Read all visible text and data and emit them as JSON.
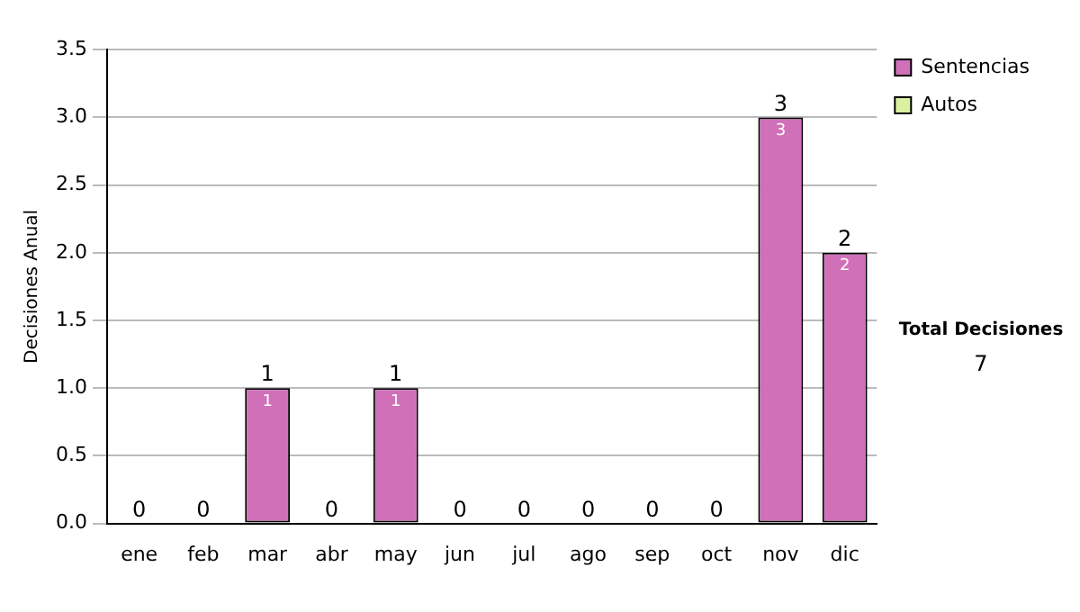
{
  "chart_data": {
    "type": "bar",
    "stacked": true,
    "ylabel": "Decisiones Anual",
    "categories": [
      "ene",
      "feb",
      "mar",
      "abr",
      "may",
      "jun",
      "jul",
      "ago",
      "sep",
      "oct",
      "nov",
      "dic"
    ],
    "series": [
      {
        "name": "Sentencias",
        "color": "#d070b8",
        "values": [
          0,
          0,
          1,
          0,
          1,
          0,
          0,
          0,
          0,
          0,
          3,
          2
        ],
        "value_labels": [
          null,
          null,
          "1",
          null,
          "1",
          null,
          null,
          null,
          null,
          null,
          "3",
          "2"
        ]
      },
      {
        "name": "Autos",
        "color": "#d8f0a0",
        "values": [
          0,
          0,
          0,
          0,
          0,
          0,
          0,
          0,
          0,
          0,
          0,
          0
        ]
      }
    ],
    "totals": [
      "0",
      "0",
      "1",
      "0",
      "1",
      "0",
      "0",
      "0",
      "0",
      "0",
      "3",
      "2"
    ],
    "ylim": [
      0,
      3.5
    ],
    "yticks": [
      {
        "value": 0,
        "label": "0.0"
      },
      {
        "value": 0.5,
        "label": "0.5"
      },
      {
        "value": 1,
        "label": "1.0"
      },
      {
        "value": 1.5,
        "label": "1.5"
      },
      {
        "value": 2,
        "label": "2.0"
      },
      {
        "value": 2.5,
        "label": "2.5"
      },
      {
        "value": 3,
        "label": "3.0"
      },
      {
        "value": 3.5,
        "label": "3.5"
      }
    ],
    "grid": "y",
    "legend": "right",
    "annotations": [
      "Total Decisiones",
      "7"
    ]
  }
}
